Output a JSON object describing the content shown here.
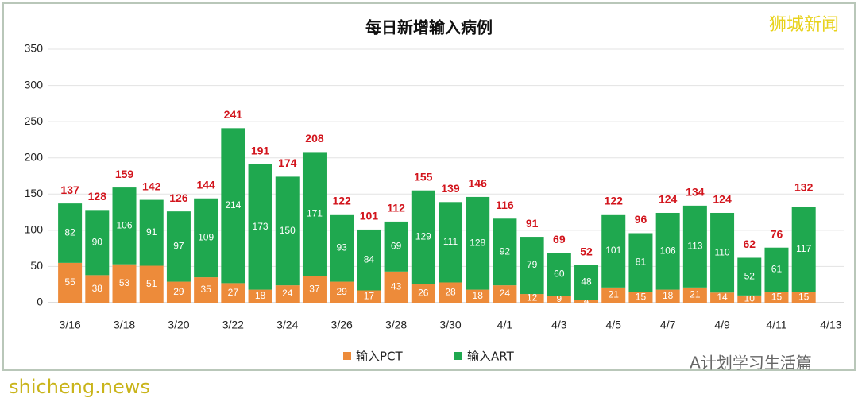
{
  "chart_data": {
    "type": "stacked-bar",
    "title": "每日新增输入病例",
    "categories": [
      "3/16",
      null,
      "3/18",
      null,
      "3/20",
      null,
      "3/22",
      null,
      "3/24",
      null,
      "3/26",
      null,
      "3/28",
      null,
      "3/30",
      null,
      "4/1",
      null,
      "4/3",
      null,
      "4/5",
      null,
      "4/7",
      null,
      "4/9",
      null,
      "4/11",
      null,
      "4/13"
    ],
    "series": [
      {
        "name": "输入PCT",
        "color": "#ed8b3a",
        "values": [
          55,
          38,
          53,
          51,
          29,
          35,
          27,
          18,
          24,
          37,
          29,
          17,
          43,
          26,
          28,
          18,
          24,
          12,
          9,
          4,
          21,
          15,
          18,
          21,
          14,
          10,
          15,
          15,
          null
        ]
      },
      {
        "name": "输入ART",
        "color": "#1fa84f",
        "values": [
          82,
          90,
          106,
          91,
          97,
          109,
          214,
          173,
          150,
          171,
          93,
          84,
          69,
          129,
          111,
          128,
          92,
          79,
          60,
          48,
          101,
          81,
          106,
          113,
          110,
          52,
          61,
          117,
          null
        ]
      }
    ],
    "totals": [
      137,
      128,
      159,
      142,
      126,
      144,
      241,
      191,
      174,
      208,
      122,
      101,
      112,
      155,
      139,
      146,
      116,
      91,
      69,
      52,
      122,
      96,
      124,
      134,
      124,
      62,
      76,
      132,
      null
    ],
    "ylim": [
      0,
      350
    ],
    "yticks": [
      0,
      50,
      100,
      150,
      200,
      250,
      300,
      350
    ],
    "grid": true,
    "watermarks": [
      "狮城新闻",
      "A计划学习生活篇",
      "shicheng.news"
    ]
  }
}
